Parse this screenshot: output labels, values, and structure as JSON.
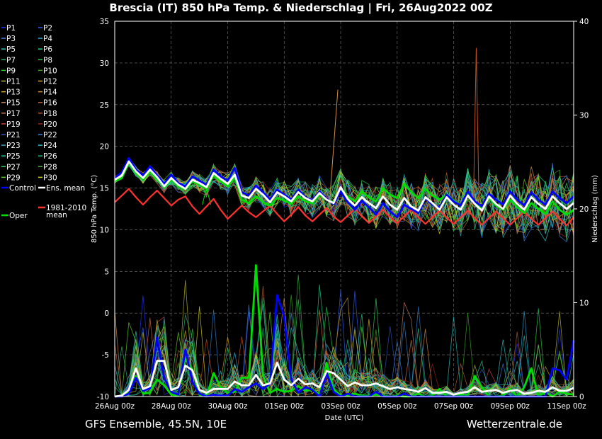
{
  "title": "Brescia  (IT)  850 hPa Temp. & Niederschlag | Fri, 26Aug2022 00Z",
  "footer": {
    "left": "GFS Ensemble, 45.5N, 10E",
    "right": "Wetterzentrale.de"
  },
  "chart_data": {
    "type": "line",
    "xlabel": "Date (UTC)",
    "ylabel": "850 hPa Temp. (°C)",
    "y2label": "Niederschlag (mm)",
    "ylim": [
      -10,
      35
    ],
    "y2lim": [
      0,
      40
    ],
    "yticks": [
      "35",
      "30",
      "25",
      "20",
      "15",
      "10",
      "5",
      "0",
      "-5",
      "-10"
    ],
    "y2ticks": [
      "40",
      "30",
      "20",
      "10",
      "0"
    ],
    "xticks": [
      "26Aug 00z",
      "28Aug 00z",
      "30Aug 00z",
      "01Sep 00z",
      "03Sep 00z",
      "05Sep 00z",
      "07Sep 00z",
      "09Sep 00z",
      "11Sep 00z"
    ],
    "grid": true,
    "legend_position": "left",
    "legend": [
      {
        "name": "P1",
        "color": "#1f2fff"
      },
      {
        "name": "P2",
        "color": "#2e5cff"
      },
      {
        "name": "P3",
        "color": "#3c7bd6"
      },
      {
        "name": "P4",
        "color": "#2a9fd0"
      },
      {
        "name": "P5",
        "color": "#33c2c2"
      },
      {
        "name": "P6",
        "color": "#22d08c"
      },
      {
        "name": "P7",
        "color": "#26b070"
      },
      {
        "name": "P8",
        "color": "#28c850"
      },
      {
        "name": "P9",
        "color": "#1fd81f"
      },
      {
        "name": "P10",
        "color": "#3aa020"
      },
      {
        "name": "P11",
        "color": "#b8b820"
      },
      {
        "name": "P12",
        "color": "#d0a020"
      },
      {
        "name": "P13",
        "color": "#e0b030"
      },
      {
        "name": "P14",
        "color": "#d09040"
      },
      {
        "name": "P15",
        "color": "#c08060"
      },
      {
        "name": "P16",
        "color": "#b06030"
      },
      {
        "name": "P17",
        "color": "#d07040"
      },
      {
        "name": "P18",
        "color": "#c05020"
      },
      {
        "name": "P19",
        "color": "#d04040"
      },
      {
        "name": "P20",
        "color": "#a02020"
      },
      {
        "name": "P21",
        "color": "#3050c0"
      },
      {
        "name": "P22",
        "color": "#3080d0"
      },
      {
        "name": "P23",
        "color": "#40a0c0"
      },
      {
        "name": "P24",
        "color": "#20c0c0"
      },
      {
        "name": "P25",
        "color": "#20d0a0"
      },
      {
        "name": "P26",
        "color": "#20c080"
      },
      {
        "name": "P27",
        "color": "#30d060"
      },
      {
        "name": "P28",
        "color": "#40b040"
      },
      {
        "name": "P29",
        "color": "#60d020"
      },
      {
        "name": "P30",
        "color": "#d0d020"
      },
      {
        "name": "Control",
        "color": "#0000ff"
      },
      {
        "name": "Ens. mean",
        "color": "#ffffff"
      },
      {
        "name": "Oper",
        "color": "#00dd00"
      },
      {
        "name": "1981-2010\nmean",
        "color": "#ff3030"
      }
    ],
    "series": [
      {
        "name": "Ens. mean",
        "role": "temp",
        "color": "#ffffff",
        "x": [
          0,
          0.25,
          0.5,
          0.75,
          1,
          1.25,
          1.5,
          1.75,
          2,
          2.25,
          2.5,
          2.75,
          3,
          3.25,
          3.5,
          3.75,
          4,
          4.25,
          4.5,
          4.75,
          5,
          5.25,
          5.5,
          5.75,
          6,
          6.25,
          6.5,
          6.75,
          7,
          7.25,
          7.5,
          7.75,
          8,
          8.25,
          8.5,
          8.75,
          9,
          9.25,
          9.5,
          9.75,
          10,
          10.25,
          10.5,
          10.75,
          11,
          11.25,
          11.5,
          11.75,
          12,
          12.25,
          12.5,
          12.75,
          13,
          13.25,
          13.5,
          13.75,
          14,
          14.25,
          14.5,
          14.75,
          15,
          15.25,
          15.5,
          15.75,
          16,
          16.25
        ],
        "y": [
          16.0,
          16.5,
          18.2,
          17.0,
          16.2,
          17.2,
          16.3,
          15.2,
          16.2,
          15.4,
          14.9,
          16.0,
          15.6,
          15.1,
          16.8,
          16.1,
          15.5,
          16.6,
          14.1,
          13.8,
          14.9,
          14.2,
          13.3,
          14.5,
          14.0,
          13.4,
          14.5,
          13.8,
          13.4,
          14.4,
          13.6,
          13.2,
          15.1,
          13.7,
          12.9,
          13.9,
          13.2,
          12.6,
          14.0,
          13.0,
          12.4,
          13.8,
          12.8,
          12.3,
          13.9,
          13.2,
          12.4,
          13.9,
          13.0,
          12.4,
          14.1,
          13.1,
          12.3,
          14.0,
          13.1,
          12.5,
          14.1,
          13.1,
          12.4,
          13.9,
          13.1,
          12.5,
          14.0,
          13.2,
          12.5,
          13.2
        ]
      },
      {
        "name": "Control",
        "role": "temp",
        "color": "#0000ff",
        "x": [
          0,
          0.25,
          0.5,
          0.75,
          1,
          1.25,
          1.5,
          1.75,
          2,
          2.25,
          2.5,
          2.75,
          3,
          3.25,
          3.5,
          3.75,
          4,
          4.25,
          4.5,
          4.75,
          5,
          5.25,
          5.5,
          5.75,
          6,
          6.25,
          6.5,
          6.75,
          7,
          7.25,
          7.5,
          7.75,
          8,
          8.25,
          8.5,
          8.75,
          9,
          9.25,
          9.5,
          9.75,
          10,
          10.25,
          10.5,
          10.75,
          11,
          11.25,
          11.5,
          11.75,
          12,
          12.25,
          12.5,
          12.75,
          13,
          13.25,
          13.5,
          13.75,
          14,
          14.25,
          14.5,
          14.75,
          15,
          15.25,
          15.5,
          15.75,
          16,
          16.25
        ],
        "y": [
          16.2,
          16.9,
          18.6,
          17.2,
          16.5,
          17.6,
          16.5,
          15.5,
          16.6,
          15.6,
          15.2,
          16.4,
          15.9,
          15.4,
          17.2,
          16.4,
          15.9,
          17.4,
          14.5,
          14.1,
          15.3,
          14.5,
          13.6,
          14.8,
          14.2,
          13.6,
          14.8,
          13.9,
          13.5,
          14.6,
          13.7,
          13.1,
          14.6,
          13.3,
          12.4,
          13.5,
          12.7,
          11.8,
          13.2,
          12.2,
          11.5,
          13.0,
          12.5,
          12.0,
          13.8,
          13.0,
          12.6,
          14.2,
          13.4,
          12.9,
          14.6,
          13.4,
          12.8,
          14.3,
          13.6,
          13.0,
          14.6,
          13.6,
          12.9,
          14.5,
          13.6,
          13.0,
          14.6,
          13.8,
          13.2,
          14.0
        ]
      },
      {
        "name": "Oper",
        "role": "temp",
        "color": "#00dd00",
        "x": [
          0,
          0.25,
          0.5,
          0.75,
          1,
          1.25,
          1.5,
          1.75,
          2,
          2.25,
          2.5,
          2.75,
          3,
          3.25,
          3.5,
          3.75,
          4,
          4.25,
          4.5,
          4.75,
          5,
          5.25,
          5.5,
          5.75,
          6,
          6.25,
          6.5,
          6.75,
          7,
          7.25,
          7.5,
          7.75,
          8,
          8.25,
          8.5,
          8.75,
          9,
          9.25,
          9.5,
          9.75,
          10,
          10.25,
          10.5,
          10.75,
          11,
          11.25,
          11.5,
          11.75,
          12,
          12.25,
          12.5,
          12.75,
          13,
          13.25,
          13.5,
          13.75,
          14,
          14.25,
          14.5,
          14.75,
          15,
          15.25,
          15.5,
          15.75,
          16,
          16.25
        ],
        "y": [
          15.8,
          16.2,
          18.0,
          16.8,
          16.0,
          17.0,
          16.1,
          15.1,
          16.0,
          15.2,
          14.8,
          15.8,
          15.4,
          14.9,
          16.5,
          15.8,
          15.2,
          16.2,
          13.6,
          13.2,
          14.0,
          13.3,
          12.9,
          13.8,
          13.5,
          13.1,
          14.0,
          13.4,
          13.2,
          14.2,
          13.6,
          13.3,
          14.8,
          14.0,
          13.4,
          14.6,
          13.9,
          13.4,
          15.0,
          14.2,
          13.8,
          15.5,
          14.5,
          13.8,
          14.9,
          14.1,
          13.6,
          14.2,
          13.5,
          12.9,
          14.3,
          13.2,
          12.6,
          13.8,
          12.9,
          12.4,
          13.6,
          12.7,
          12.0,
          13.2,
          12.5,
          11.9,
          13.4,
          12.4,
          11.8,
          12.4
        ]
      },
      {
        "name": "1981-2010 mean",
        "role": "temp",
        "color": "#ff3030",
        "x": [
          0,
          0.25,
          0.5,
          0.75,
          1,
          1.25,
          1.5,
          1.75,
          2,
          2.25,
          2.5,
          2.75,
          3,
          3.25,
          3.5,
          3.75,
          4,
          4.25,
          4.5,
          4.75,
          5,
          5.25,
          5.5,
          5.75,
          6,
          6.25,
          6.5,
          6.75,
          7,
          7.25,
          7.5,
          7.75,
          8,
          8.25,
          8.5,
          8.75,
          9,
          9.25,
          9.5,
          9.75,
          10,
          10.25,
          10.5,
          10.75,
          11,
          11.25,
          11.5,
          11.75,
          12,
          12.25,
          12.5,
          12.75,
          13,
          13.25,
          13.5,
          13.75,
          14,
          14.25,
          14.5,
          14.75,
          15,
          15.25,
          15.5,
          15.75,
          16,
          16.25
        ],
        "y": [
          13.3,
          14.1,
          14.9,
          13.9,
          13.0,
          13.9,
          14.7,
          13.8,
          12.9,
          13.6,
          14.0,
          12.8,
          11.9,
          12.8,
          13.7,
          12.4,
          11.3,
          12.1,
          12.9,
          12.1,
          11.5,
          12.2,
          12.9,
          11.9,
          11.0,
          11.8,
          12.7,
          11.7,
          11.0,
          11.8,
          12.6,
          11.6,
          10.9,
          11.7,
          12.5,
          11.6,
          10.8,
          11.6,
          12.4,
          11.5,
          10.8,
          11.6,
          12.4,
          11.5,
          10.7,
          11.5,
          12.3,
          11.5,
          10.7,
          11.5,
          12.3,
          11.4,
          10.6,
          11.4,
          12.2,
          11.4,
          10.6,
          11.4,
          12.2,
          11.3,
          10.6,
          11.4,
          12.2,
          11.3,
          10.5,
          11.5
        ]
      },
      {
        "name": "Ens. mean",
        "role": "precip",
        "color": "#ffffff",
        "x": [
          0,
          0.25,
          0.5,
          0.75,
          1,
          1.25,
          1.5,
          1.75,
          2,
          2.25,
          2.5,
          2.75,
          3,
          3.25,
          3.5,
          3.75,
          4,
          4.25,
          4.5,
          4.75,
          5,
          5.25,
          5.5,
          5.75,
          6,
          6.25,
          6.5,
          6.75,
          7,
          7.25,
          7.5,
          7.75,
          8,
          8.25,
          8.5,
          8.75,
          9,
          9.25,
          9.5,
          9.75,
          10,
          10.25,
          10.5,
          10.75,
          11,
          11.25,
          11.5,
          11.75,
          12,
          12.25,
          12.5,
          12.75,
          13,
          13.25,
          13.5,
          13.75,
          14,
          14.25,
          14.5,
          14.75,
          15,
          15.25,
          15.5,
          15.75,
          16,
          16.25
        ],
        "y": [
          0.0,
          0.1,
          0.7,
          3.0,
          0.8,
          1.1,
          3.8,
          3.8,
          0.7,
          1.0,
          3.3,
          2.8,
          0.7,
          0.4,
          0.8,
          0.8,
          0.8,
          1.6,
          1.2,
          1.2,
          2.3,
          1.2,
          1.4,
          3.6,
          1.8,
          1.2,
          1.9,
          1.3,
          1.4,
          1.0,
          2.7,
          2.5,
          1.8,
          1.1,
          1.5,
          1.2,
          1.2,
          1.4,
          1.1,
          0.8,
          1.0,
          0.8,
          0.7,
          0.5,
          0.9,
          0.4,
          0.4,
          0.5,
          0.2,
          0.4,
          0.5,
          1.0,
          0.5,
          0.6,
          0.7,
          0.4,
          0.6,
          0.7,
          0.3,
          0.4,
          0.6,
          0.5,
          1.0,
          0.6,
          0.6,
          0.9
        ]
      },
      {
        "name": "Control",
        "role": "precip",
        "color": "#0000ff",
        "x": [
          0,
          0.25,
          0.5,
          0.75,
          1,
          1.25,
          1.5,
          1.75,
          2,
          2.25,
          2.5,
          2.75,
          3,
          3.25,
          3.5,
          3.75,
          4,
          4.25,
          4.5,
          4.75,
          5,
          5.25,
          5.5,
          5.75,
          6,
          6.25,
          6.5,
          6.75,
          7,
          7.25,
          7.5,
          7.75,
          8,
          8.25,
          8.5,
          8.75,
          9,
          9.25,
          9.5,
          9.75,
          10,
          10.25,
          10.5,
          10.75,
          11,
          11.25,
          11.5,
          11.75,
          12,
          12.25,
          12.5,
          12.75,
          13,
          13.25,
          13.5,
          13.75,
          14,
          14.25,
          14.5,
          14.75,
          15,
          15.25,
          15.5,
          15.75,
          16,
          16.25
        ],
        "y": [
          0.0,
          0.0,
          0.3,
          2.0,
          0.6,
          0.9,
          6.3,
          2.0,
          0.5,
          0.2,
          5.0,
          1.5,
          0.3,
          0.0,
          0.2,
          0.1,
          0.1,
          0.8,
          0.5,
          1.0,
          1.4,
          0.8,
          1.4,
          10.8,
          8.5,
          1.8,
          0.4,
          1.0,
          0.7,
          0.0,
          2.5,
          0.5,
          0.0,
          0.3,
          0.0,
          0.0,
          0.0,
          0.5,
          0.0,
          0.0,
          0.0,
          0.3,
          0.0,
          0.0,
          0.0,
          0.0,
          0.0,
          0.0,
          0.0,
          0.0,
          0.0,
          0.0,
          0.0,
          0.0,
          0.0,
          0.0,
          0.0,
          0.0,
          0.0,
          0.0,
          0.0,
          0.0,
          3.0,
          2.8,
          1.8,
          6.0
        ]
      },
      {
        "name": "Oper",
        "role": "precip",
        "color": "#00dd00",
        "x": [
          0,
          0.25,
          0.5,
          0.75,
          1,
          1.25,
          1.5,
          1.75,
          2,
          2.25,
          2.5,
          2.75,
          3,
          3.25,
          3.5,
          3.75,
          4,
          4.25,
          4.5,
          4.75,
          5,
          5.25,
          5.5,
          5.75,
          6,
          6.25,
          6.5,
          6.75,
          7,
          7.25,
          7.5,
          7.75,
          8,
          8.25,
          8.5,
          8.75,
          9,
          9.25,
          9.5,
          9.75,
          10,
          10.25,
          10.5,
          10.75,
          11,
          11.25,
          11.5,
          11.75,
          12,
          12.25,
          12.5,
          12.75,
          13,
          13.25,
          13.5,
          13.75,
          14,
          14.25,
          14.5,
          14.75,
          15,
          15.25,
          15.5,
          15.75,
          16,
          16.25
        ],
        "y": [
          0.0,
          0.0,
          0.4,
          2.2,
          0.3,
          0.4,
          1.8,
          1.2,
          0.2,
          0.1,
          4.0,
          2.9,
          0.2,
          0.0,
          2.5,
          1.0,
          0.4,
          0.5,
          2.0,
          2.0,
          14.0,
          2.2,
          0.4,
          0.8,
          0.5,
          0.6,
          1.1,
          0.6,
          0.8,
          0.2,
          3.6,
          0.8,
          0.1,
          0.1,
          0.3,
          0.1,
          0.1,
          0.2,
          0.1,
          0.0,
          0.1,
          0.0,
          0.0,
          0.3,
          0.0,
          0.1,
          0.8,
          0.0,
          0.0,
          0.2,
          0.1,
          2.2,
          1.0,
          0.0,
          0.0,
          0.1,
          0.8,
          0.0,
          1.0,
          3.0,
          0.0,
          0.5,
          0.0,
          0.5,
          0.3,
          0.2
        ]
      }
    ]
  }
}
